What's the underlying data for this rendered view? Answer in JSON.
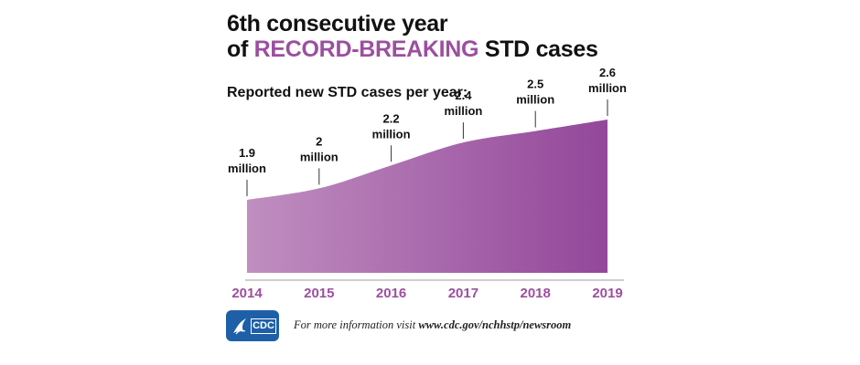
{
  "header": {
    "title_line1": "6th consecutive year",
    "title_line2_prefix": "of ",
    "title_line2_accent": "RECORD-BREAKING",
    "title_line2_suffix": " STD cases",
    "subtitle": "Reported new STD cases per year:"
  },
  "colors": {
    "accent": "#9b4f9f",
    "area_light": "#c08ec0",
    "area_dark": "#93479a",
    "logo_blue": "#1e5fa8"
  },
  "chart_data": {
    "type": "area",
    "title": "",
    "xlabel": "",
    "ylabel": "",
    "categories": [
      "2014",
      "2015",
      "2016",
      "2017",
      "2018",
      "2019"
    ],
    "values": [
      1.9,
      2,
      2.2,
      2.4,
      2.5,
      2.6
    ],
    "unit": "million",
    "value_labels": [
      "1.9",
      "2",
      "2.2",
      "2.4",
      "2.5",
      "2.6"
    ],
    "grid": false,
    "legend": "none"
  },
  "footer": {
    "logo_text": "CDC",
    "logo_icon": "hhs-eagle-icon",
    "note_prefix": "For more information visit ",
    "note_url": "www.cdc.gov/nchhstp/newsroom"
  }
}
